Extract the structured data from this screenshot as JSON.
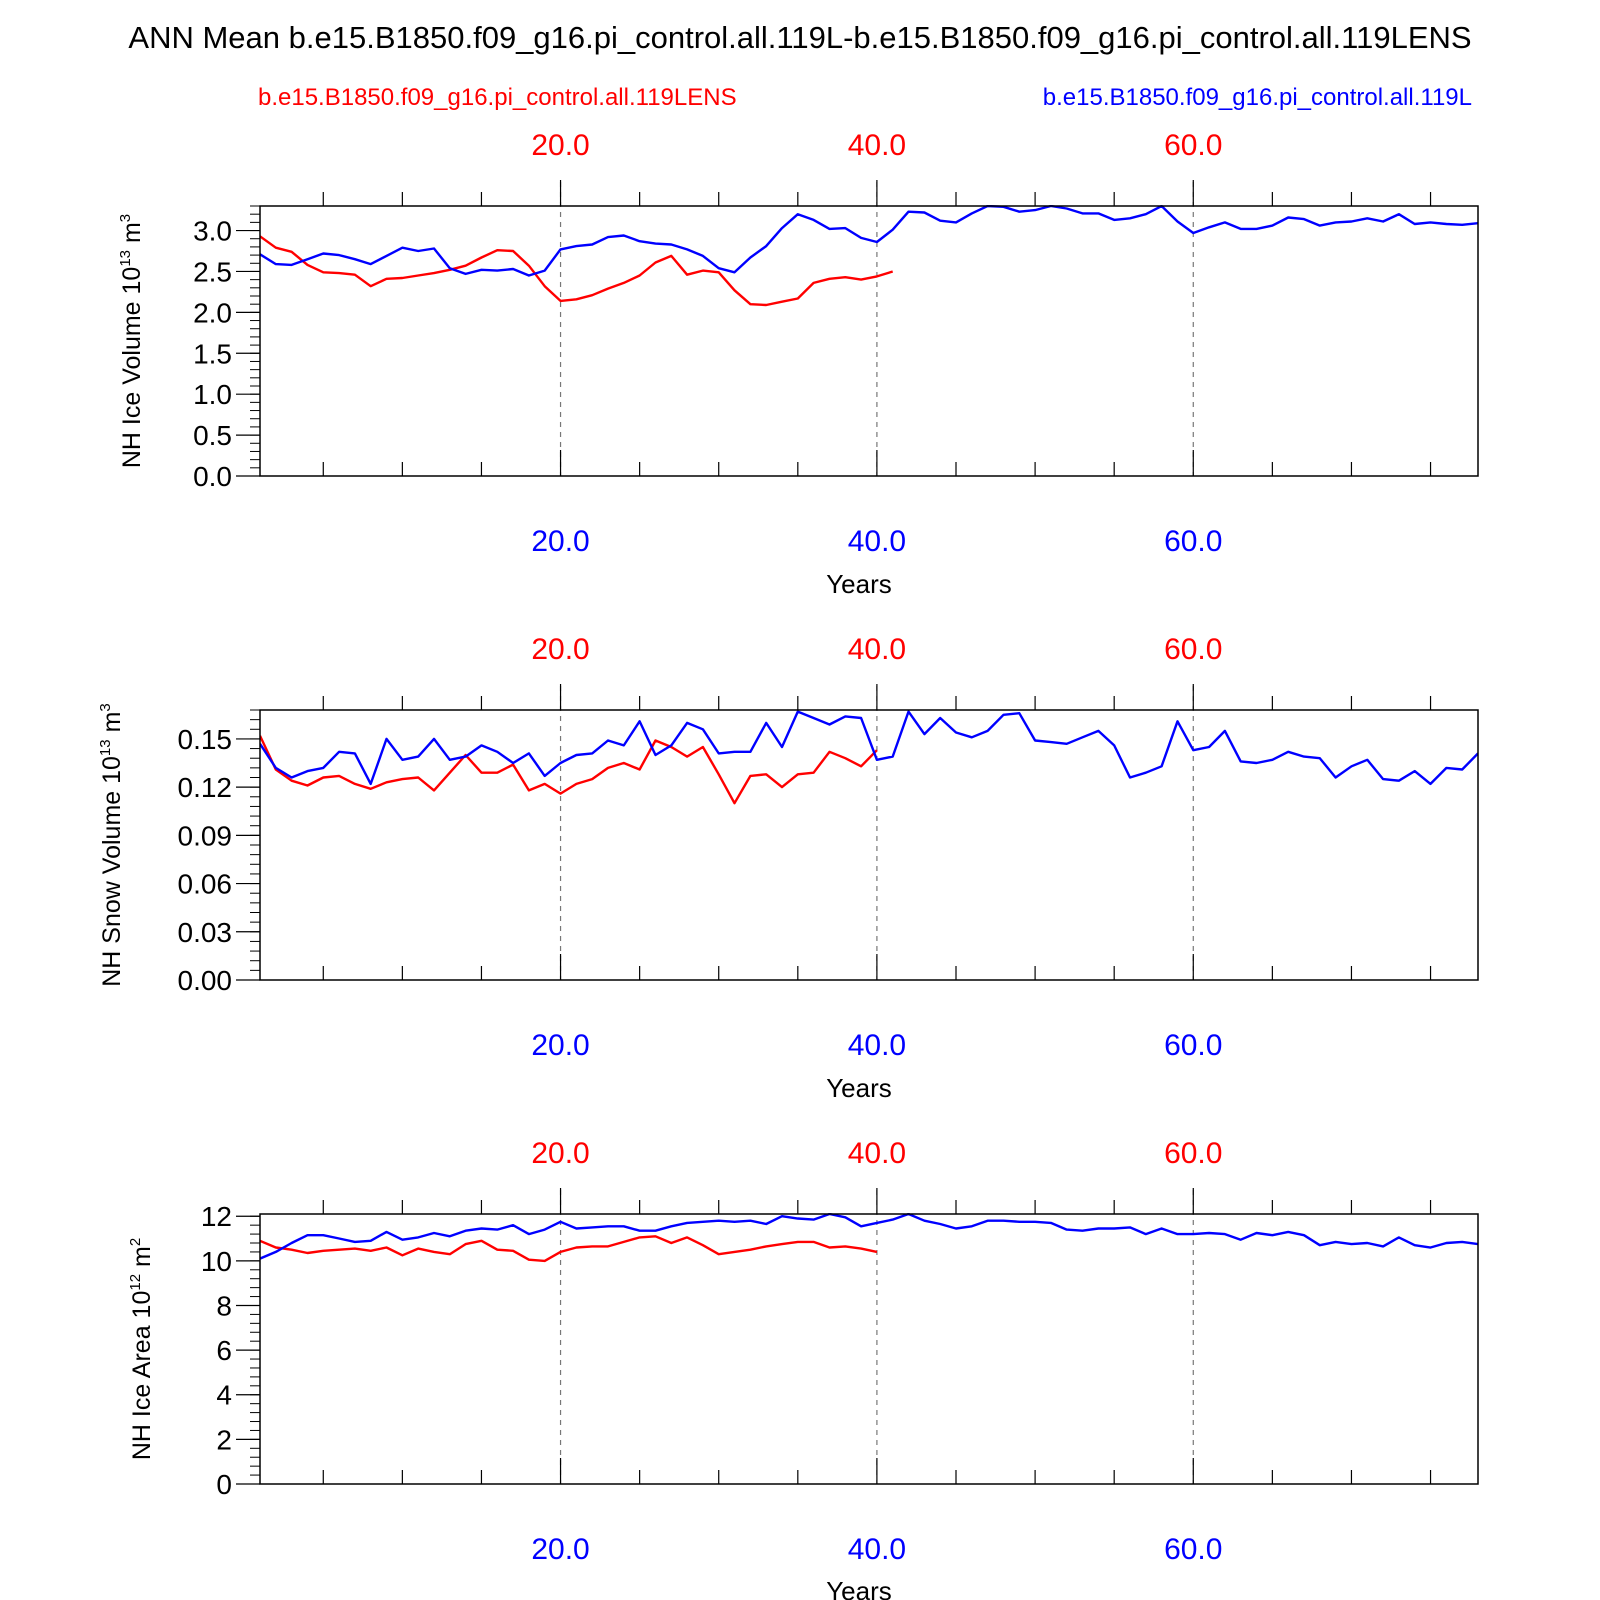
{
  "title": "ANN Mean b.e15.B1850.f09_g16.pi_control.all.119L-b.e15.B1850.f09_g16.pi_control.all.119LENS",
  "legend": {
    "red_label": "b.e15.B1850.f09_g16.pi_control.all.119LENS",
    "blue_label": "b.e15.B1850.f09_g16.pi_control.all.119L"
  },
  "colors": {
    "red": "#ff0000",
    "blue": "#0000ff",
    "frame": "#000000",
    "grid": "#777777"
  },
  "chart_data": [
    {
      "type": "line",
      "ylabel": "NH Ice Volume",
      "yunit_base": "10",
      "yunit_exp": "13",
      "yunit_tail": "m",
      "yunit_tail_exp": "3",
      "xlabel": "Years",
      "xlim": [
        1,
        78
      ],
      "ylim": [
        0,
        3.3
      ],
      "yticks": [
        "0.0",
        "0.5",
        "1.0",
        "1.5",
        "2.0",
        "2.5",
        "3.0"
      ],
      "yminor_step": 0.1,
      "grid_x": [
        20,
        40,
        60
      ],
      "top_ticklabels": [
        "20.0",
        "40.0",
        "60.0"
      ],
      "bottom_ticklabels": [
        "20.0",
        "40.0",
        "60.0"
      ],
      "series": [
        {
          "name": "b.e15.B1850.f09_g16.pi_control.all.119LENS",
          "color": "#ff0000",
          "x_start": 1,
          "values": [
            2.93,
            2.79,
            2.74,
            2.58,
            2.49,
            2.48,
            2.46,
            2.32,
            2.41,
            2.42,
            2.45,
            2.48,
            2.52,
            2.57,
            2.67,
            2.76,
            2.75,
            2.57,
            2.32,
            2.14,
            2.16,
            2.21,
            2.29,
            2.36,
            2.45,
            2.61,
            2.69,
            2.46,
            2.51,
            2.49,
            2.27,
            2.1,
            2.09,
            2.13,
            2.17,
            2.36,
            2.41,
            2.43,
            2.4,
            2.44,
            2.5
          ]
        },
        {
          "name": "b.e15.B1850.f09_g16.pi_control.all.119L",
          "color": "#0000ff",
          "x_start": 1,
          "values": [
            2.71,
            2.59,
            2.58,
            2.65,
            2.72,
            2.7,
            2.65,
            2.59,
            2.69,
            2.79,
            2.75,
            2.78,
            2.54,
            2.47,
            2.52,
            2.51,
            2.53,
            2.45,
            2.51,
            2.77,
            2.81,
            2.83,
            2.92,
            2.94,
            2.87,
            2.84,
            2.83,
            2.77,
            2.69,
            2.54,
            2.49,
            2.67,
            2.81,
            3.03,
            3.2,
            3.13,
            3.02,
            3.03,
            2.91,
            2.86,
            3.01,
            3.23,
            3.22,
            3.12,
            3.1,
            3.21,
            3.3,
            3.29,
            3.23,
            3.25,
            3.3,
            3.27,
            3.21,
            3.21,
            3.13,
            3.15,
            3.2,
            3.3,
            3.11,
            2.97,
            3.04,
            3.1,
            3.02,
            3.02,
            3.06,
            3.16,
            3.14,
            3.06,
            3.1,
            3.11,
            3.15,
            3.11,
            3.2,
            3.08,
            3.1,
            3.08,
            3.07,
            3.09
          ]
        }
      ]
    },
    {
      "type": "line",
      "ylabel": "NH Snow Volume",
      "yunit_base": "10",
      "yunit_exp": "13",
      "yunit_tail": "m",
      "yunit_tail_exp": "3",
      "xlabel": "Years",
      "xlim": [
        1,
        78
      ],
      "ylim": [
        0,
        0.168
      ],
      "yticks": [
        "0.00",
        "0.03",
        "0.06",
        "0.09",
        "0.12",
        "0.15"
      ],
      "yminor_step": 0.006,
      "grid_x": [
        20,
        40,
        60
      ],
      "top_ticklabels": [
        "20.0",
        "40.0",
        "60.0"
      ],
      "bottom_ticklabels": [
        "20.0",
        "40.0",
        "60.0"
      ],
      "series": [
        {
          "name": "b.e15.B1850.f09_g16.pi_control.all.119LENS",
          "color": "#ff0000",
          "x_start": 1,
          "values": [
            0.152,
            0.131,
            0.124,
            0.121,
            0.126,
            0.127,
            0.122,
            0.119,
            0.123,
            0.125,
            0.126,
            0.118,
            0.129,
            0.14,
            0.129,
            0.129,
            0.134,
            0.118,
            0.122,
            0.116,
            0.122,
            0.125,
            0.132,
            0.135,
            0.131,
            0.149,
            0.145,
            0.139,
            0.145,
            0.128,
            0.11,
            0.127,
            0.128,
            0.12,
            0.128,
            0.129,
            0.142,
            0.138,
            0.133,
            0.143
          ]
        },
        {
          "name": "b.e15.B1850.f09_g16.pi_control.all.119L",
          "color": "#0000ff",
          "x_start": 1,
          "values": [
            0.147,
            0.132,
            0.126,
            0.13,
            0.132,
            0.142,
            0.141,
            0.122,
            0.15,
            0.137,
            0.139,
            0.15,
            0.137,
            0.139,
            0.146,
            0.142,
            0.135,
            0.141,
            0.127,
            0.135,
            0.14,
            0.141,
            0.149,
            0.146,
            0.161,
            0.14,
            0.146,
            0.16,
            0.156,
            0.141,
            0.142,
            0.142,
            0.16,
            0.145,
            0.167,
            0.163,
            0.159,
            0.164,
            0.163,
            0.137,
            0.139,
            0.167,
            0.153,
            0.163,
            0.154,
            0.151,
            0.155,
            0.165,
            0.166,
            0.149,
            0.148,
            0.147,
            0.151,
            0.155,
            0.146,
            0.126,
            0.129,
            0.133,
            0.161,
            0.143,
            0.145,
            0.155,
            0.136,
            0.135,
            0.137,
            0.142,
            0.139,
            0.138,
            0.126,
            0.133,
            0.137,
            0.125,
            0.124,
            0.13,
            0.122,
            0.132,
            0.131,
            0.141
          ]
        }
      ]
    },
    {
      "type": "line",
      "ylabel": "NH Ice Area",
      "yunit_base": "10",
      "yunit_exp": "12",
      "yunit_tail": "m",
      "yunit_tail_exp": "2",
      "xlabel": "Years",
      "xlim": [
        1,
        78
      ],
      "ylim": [
        0,
        12.1
      ],
      "yticks": [
        "0",
        "2",
        "4",
        "6",
        "8",
        "10",
        "12"
      ],
      "yminor_step": 0.4,
      "grid_x": [
        20,
        40,
        60
      ],
      "top_ticklabels": [
        "20.0",
        "40.0",
        "60.0"
      ],
      "bottom_ticklabels": [
        "20.0",
        "40.0",
        "60.0"
      ],
      "series": [
        {
          "name": "b.e15.B1850.f09_g16.pi_control.all.119LENS",
          "color": "#ff0000",
          "x_start": 1,
          "values": [
            10.9,
            10.6,
            10.5,
            10.35,
            10.45,
            10.5,
            10.55,
            10.45,
            10.6,
            10.25,
            10.55,
            10.4,
            10.3,
            10.75,
            10.9,
            10.5,
            10.45,
            10.05,
            10.0,
            10.4,
            10.6,
            10.65,
            10.65,
            10.85,
            11.05,
            11.1,
            10.8,
            11.05,
            10.7,
            10.3,
            10.4,
            10.5,
            10.65,
            10.75,
            10.85,
            10.85,
            10.6,
            10.65,
            10.55,
            10.4
          ]
        },
        {
          "name": "b.e15.B1850.f09_g16.pi_control.all.119L",
          "color": "#0000ff",
          "x_start": 1,
          "values": [
            10.1,
            10.4,
            10.8,
            11.15,
            11.15,
            11.0,
            10.85,
            10.9,
            11.3,
            10.95,
            11.05,
            11.25,
            11.1,
            11.35,
            11.45,
            11.4,
            11.6,
            11.2,
            11.4,
            11.75,
            11.45,
            11.5,
            11.55,
            11.55,
            11.35,
            11.35,
            11.55,
            11.7,
            11.75,
            11.8,
            11.75,
            11.8,
            11.65,
            12.0,
            11.9,
            11.85,
            12.1,
            11.95,
            11.55,
            11.7,
            11.85,
            12.1,
            11.8,
            11.65,
            11.45,
            11.55,
            11.8,
            11.8,
            11.75,
            11.75,
            11.7,
            11.4,
            11.35,
            11.45,
            11.45,
            11.5,
            11.2,
            11.45,
            11.2,
            11.2,
            11.25,
            11.2,
            10.95,
            11.25,
            11.15,
            11.3,
            11.15,
            10.7,
            10.85,
            10.75,
            10.8,
            10.65,
            11.05,
            10.7,
            10.6,
            10.8,
            10.85,
            10.75
          ]
        }
      ]
    }
  ]
}
